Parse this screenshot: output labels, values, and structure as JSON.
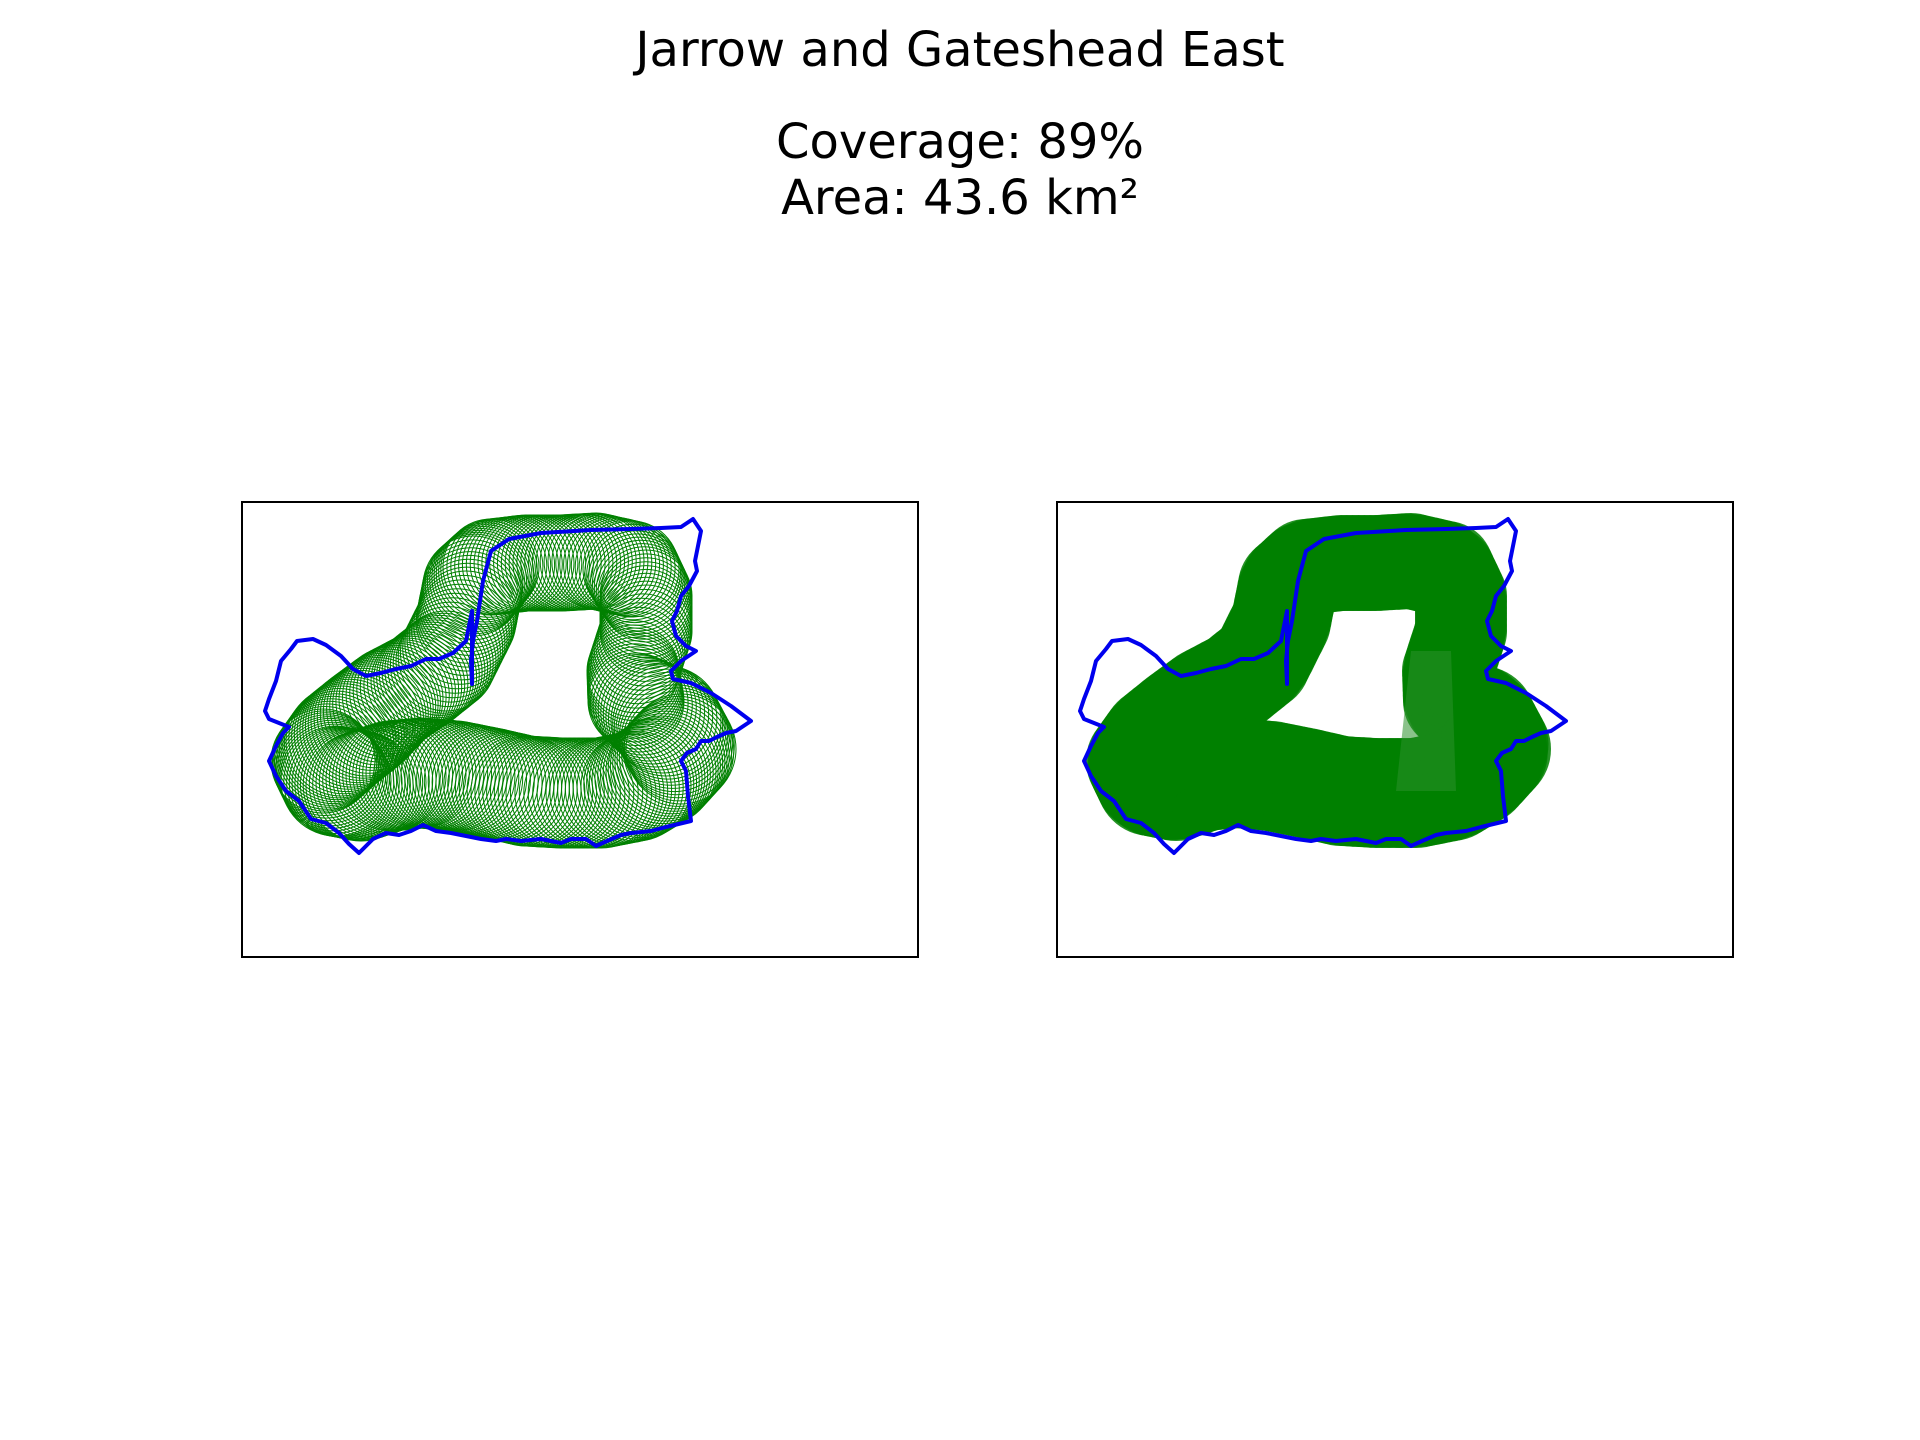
{
  "figure": {
    "title": "Jarrow and Gateshead East",
    "coverage_line": "Coverage: 89%",
    "area_line": "Area: 43.6 km²"
  },
  "colors": {
    "boundary": "#0000ee",
    "coverage": "#008000",
    "frame": "#000000"
  },
  "panels": [
    {
      "name": "outline-circles",
      "style": "outline"
    },
    {
      "name": "filled-circles",
      "style": "filled"
    }
  ]
}
